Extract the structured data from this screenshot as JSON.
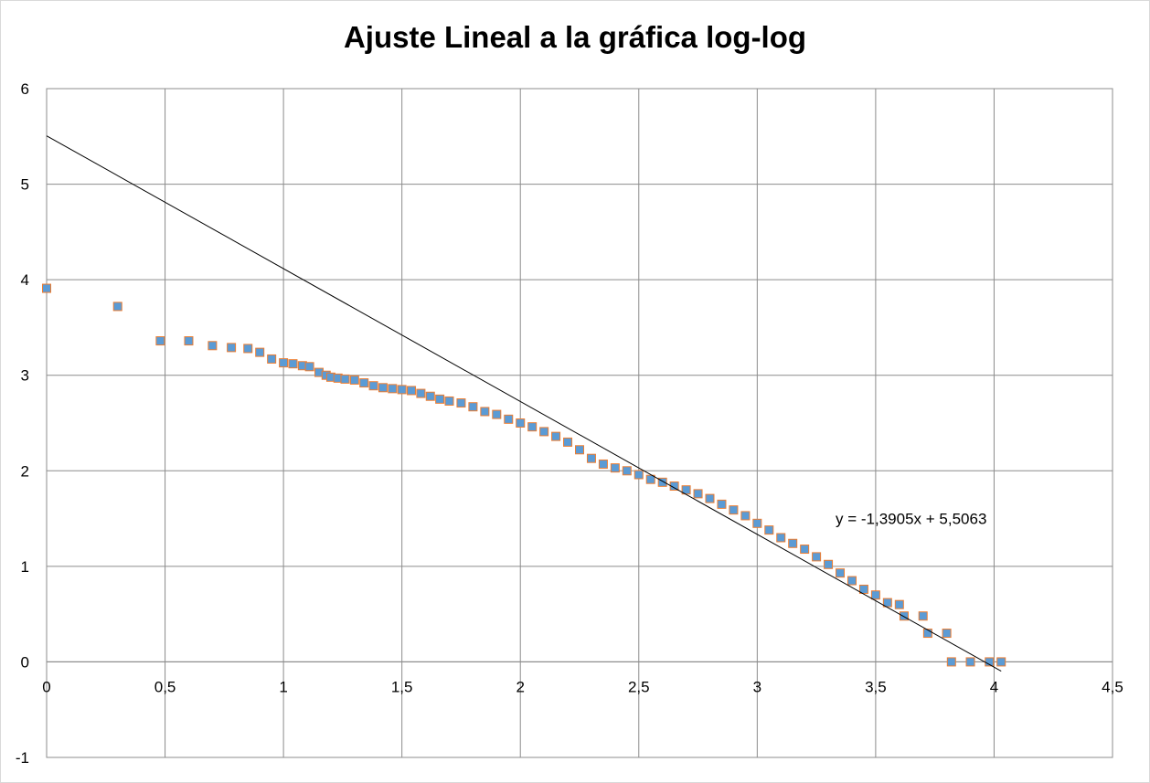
{
  "chart_data": {
    "type": "scatter",
    "title": "Ajuste Lineal a la gráfica log-log",
    "xlabel": "",
    "ylabel": "",
    "xlim": [
      0,
      4.5
    ],
    "ylim": [
      -1,
      6
    ],
    "x_ticks": [
      0,
      0.5,
      1,
      1.5,
      2,
      2.5,
      3,
      3.5,
      4,
      4.5
    ],
    "x_tick_labels": [
      "0",
      "0,5",
      "1",
      "1,5",
      "2",
      "2,5",
      "3",
      "3,5",
      "4",
      "4,5"
    ],
    "y_ticks": [
      -1,
      0,
      1,
      2,
      3,
      4,
      5,
      6
    ],
    "y_tick_labels": [
      "-1",
      "0",
      "1",
      "2",
      "3",
      "4",
      "5",
      "6"
    ],
    "grid": true,
    "marker_color": "#5b9bd5",
    "marker_edge_color": "#ed7d31",
    "series": [
      {
        "points": [
          [
            0,
            3.91
          ],
          [
            0.3,
            3.72
          ],
          [
            0.48,
            3.36
          ],
          [
            0.6,
            3.36
          ],
          [
            0.7,
            3.31
          ],
          [
            0.78,
            3.29
          ],
          [
            0.85,
            3.28
          ],
          [
            0.9,
            3.24
          ],
          [
            0.95,
            3.17
          ],
          [
            1.0,
            3.13
          ],
          [
            1.04,
            3.12
          ],
          [
            1.08,
            3.1
          ],
          [
            1.11,
            3.09
          ],
          [
            1.15,
            3.03
          ],
          [
            1.18,
            3.0
          ],
          [
            1.2,
            2.98
          ],
          [
            1.23,
            2.97
          ],
          [
            1.26,
            2.96
          ],
          [
            1.3,
            2.95
          ],
          [
            1.34,
            2.92
          ],
          [
            1.38,
            2.89
          ],
          [
            1.42,
            2.87
          ],
          [
            1.46,
            2.86
          ],
          [
            1.5,
            2.85
          ],
          [
            1.54,
            2.84
          ],
          [
            1.58,
            2.81
          ],
          [
            1.62,
            2.78
          ],
          [
            1.66,
            2.75
          ],
          [
            1.7,
            2.73
          ],
          [
            1.75,
            2.71
          ],
          [
            1.8,
            2.67
          ],
          [
            1.85,
            2.62
          ],
          [
            1.9,
            2.59
          ],
          [
            1.95,
            2.54
          ],
          [
            2.0,
            2.5
          ],
          [
            2.05,
            2.46
          ],
          [
            2.1,
            2.41
          ],
          [
            2.15,
            2.36
          ],
          [
            2.2,
            2.3
          ],
          [
            2.25,
            2.22
          ],
          [
            2.3,
            2.13
          ],
          [
            2.35,
            2.07
          ],
          [
            2.4,
            2.03
          ],
          [
            2.45,
            2.0
          ],
          [
            2.5,
            1.96
          ],
          [
            2.55,
            1.91
          ],
          [
            2.6,
            1.88
          ],
          [
            2.65,
            1.84
          ],
          [
            2.7,
            1.8
          ],
          [
            2.75,
            1.76
          ],
          [
            2.8,
            1.71
          ],
          [
            2.85,
            1.65
          ],
          [
            2.9,
            1.59
          ],
          [
            2.95,
            1.53
          ],
          [
            3.0,
            1.45
          ],
          [
            3.05,
            1.38
          ],
          [
            3.1,
            1.3
          ],
          [
            3.15,
            1.24
          ],
          [
            3.2,
            1.18
          ],
          [
            3.25,
            1.1
          ],
          [
            3.3,
            1.02
          ],
          [
            3.35,
            0.93
          ],
          [
            3.4,
            0.85
          ],
          [
            3.45,
            0.76
          ],
          [
            3.5,
            0.7
          ],
          [
            3.55,
            0.62
          ],
          [
            3.6,
            0.6
          ],
          [
            3.62,
            0.48
          ],
          [
            3.7,
            0.48
          ],
          [
            3.72,
            0.3
          ],
          [
            3.8,
            0.3
          ],
          [
            3.82,
            0.0
          ],
          [
            3.9,
            0.0
          ],
          [
            3.98,
            0.0
          ],
          [
            4.03,
            0.0
          ]
        ]
      }
    ],
    "trendline": {
      "slope": -1.3905,
      "intercept": 5.5063,
      "x_range": [
        0,
        4.03
      ],
      "color": "#000000"
    },
    "equation_label": "y = -1,3905x + 5,5063",
    "equation_position": {
      "x": 3.35,
      "y": 1.5
    }
  }
}
